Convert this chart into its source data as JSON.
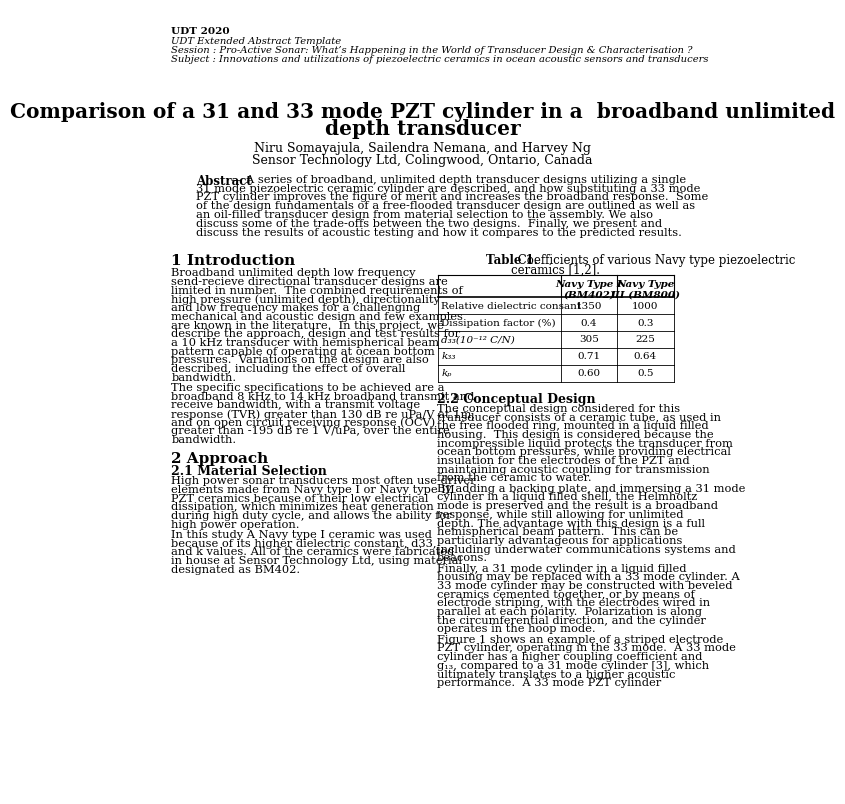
{
  "bg_color": "#ffffff",
  "header_bold": "UDT 2020",
  "header_italic_lines": [
    "UDT Extended Abstract Template",
    "Session : Pro-Active Sonar: What’s Happening in the World of Transducer Design & Characterisation ?",
    "Subject : Innovations and utilizations of piezoelectric ceramics in ocean acoustic sensors and transducers"
  ],
  "title_line1": "Comparison of a 31 and 33 mode PZT cylinder in a  broadband unlimited",
  "title_line2": "depth transducer",
  "authors": "Niru Somayajula, Sailendra Nemana, and Harvey Ng",
  "affiliation": "Sensor Technology Ltd, Colingwood, Ontario, Canada",
  "abstract_label": "Abstract",
  "abstract_text": "— A series of broadband, unlimited depth transducer designs utilizing a single 31 mode piezoelectric ceramic cylinder are described, and how substituting a 33 mode PZT cylinder improves the figure of merit and increases the broadband response.  Some of the design fundamentals of a free-flooded transducer design are outlined as well as an oil-filled transducer design from material selection to the assembly. We also discuss some of the trade-offs between the two designs.  Finally, we present and discuss the results of acoustic testing and how it compares to the predicted results.",
  "section1_title": "1 Introduction",
  "section1_text": "Broadband unlimited depth low frequency send-recieve directional transducer designs are limited in number.  The combined requirements of high pressure (unlimited depth), directionality and low frequency makes for a challenging mechanical and acoustic design and few examples are known in the literature.  In this project, we describe the approach, design and test results for a 10 kHz transducer with hemispherical beam pattern capable of operating at ocean bottom pressures.  Variations on the design are also described, including the effect of overall bandwidth.\nThe specific specifications to be achieved are a broadband 8 kHz to 14 kHz broadband transmit and receive bandwidth, with a transmit voltage response (TVR) greater than 130 dB re uPa/V at 1m, and on open circuit receiving response (OCV) greater than -195 dB re 1 V/uPa, over the entire bandwidth.",
  "section2_title": "2 Approach",
  "section2_1_title": "2.1 Material Selection",
  "section2_1_text": "High power sonar transducers most often use driver elements made from Navy type I or Navy type III PZT ceramics because of their low electrical dissipation, which minimizes heat generation during high duty cycle, and allows the ability for high power operation.\nIn this study A Navy type I ceramic was used because of its higher dielectric constant, d33, and k values. All of the ceramics were fabricated in house at Sensor Technology Ltd, using material designated as BM402.",
  "table1_title_bold": "Table 1.",
  "table1_title_rest": " Coefficients of various Navy type piezoelectric",
  "table1_title_line2": "ceramics [1,2].",
  "table1_col2_header": "Navy Type I\n(BM402)",
  "table1_col3_header": "Navy Type\nIII (BM800)",
  "table1_rows": [
    [
      "Relative dielectric consant",
      "1350",
      "1000"
    ],
    [
      "Dissipation factor (%)",
      "0.4",
      "0.3"
    ],
    [
      "d₃₃(10⁻¹² C/N)",
      "305",
      "225"
    ],
    [
      "k₃₃",
      "0.71",
      "0.64"
    ],
    [
      "kₚ",
      "0.60",
      "0.5"
    ]
  ],
  "table1_rows_italic": [
    false,
    false,
    true,
    true,
    true
  ],
  "section2_2_title": "2.2 Conceptual Design",
  "section2_2_text": "The conceptual design considered for this transducer consists of a ceramic tube, as used in the free flooded ring, mounted in a liquid filled housing.  This design is considered because the incompressible liquid protects the transducer from ocean bottom pressures, while providing electrical insulation for the electrodes of the PZT and maintaining acoustic coupling for transmission from the ceramic to water.\nBy adding a backing plate, and immersing a 31 mode cylinder in a liquid filled shell, the Helmholtz mode is preserved and the result is a broadband response, while still allowing for unlimited depth. The advantage with this design is a full hemispherical beam pattern.  This can be particularly advantageous for applications including underwater communications systems and beacons.\nFinally, a 31 mode cylinder in a liquid filled housing may be replaced with a 33 mode cylinder. A 33 mode cylinder may be constructed with beveled ceramics cemented together, or by means of electrode striping, with the electrodes wired in parallel at each polarity.  Polarization is along the circumferential direction, and the cylinder operates in the hoop mode.\nFigure 1 shows an example of a striped electrode PZT cylinder, operating in the 33 mode.  A 33 mode cylinder has a higher coupling coefficient and g₁₃, compared to a 31 mode cylinder [3], which ultimately translates to a higher acoustic performance.  A 33 mode PZT cylinder"
}
